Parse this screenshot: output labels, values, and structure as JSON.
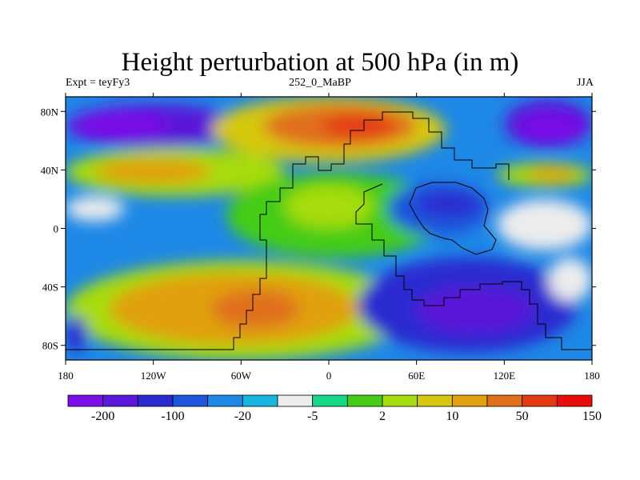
{
  "chart_data": {
    "type": "heatmap",
    "title": "Height perturbation at 500 hPa (in m)",
    "subtitle_left": "Expt = teyFy3",
    "subtitle_center": "252_0_MaBP",
    "subtitle_right": "JJA",
    "x_ticks": [
      "180",
      "120W",
      "60W",
      "0",
      "60E",
      "120E",
      "180"
    ],
    "y_ticks": [
      "80N",
      "40N",
      "0",
      "40S",
      "80S"
    ],
    "xlim": [
      -180,
      180
    ],
    "ylim": [
      -90,
      90
    ],
    "colorbar": {
      "colors": [
        "#7a10e8",
        "#5a18d8",
        "#2a2ad0",
        "#1e55dc",
        "#1e88e6",
        "#16b6e0",
        "#ececec",
        "#14d888",
        "#44cc16",
        "#a6dc10",
        "#d6c810",
        "#e0a010",
        "#e0701a",
        "#e43a14",
        "#e80c0c"
      ],
      "labels": [
        "-200",
        "-100",
        "-20",
        "-5",
        "2",
        "10",
        "50",
        "150"
      ]
    },
    "field": {
      "base": "#1e88e6",
      "regions": [
        {
          "x": [
            -180,
            -60
          ],
          "y": [
            85,
            55
          ],
          "level": 1
        },
        {
          "x": [
            -175,
            -110
          ],
          "y": [
            80,
            62
          ],
          "level": 0
        },
        {
          "x": [
            120,
            180
          ],
          "y": [
            88,
            55
          ],
          "level": 1
        },
        {
          "x": [
            130,
            175
          ],
          "y": [
            78,
            60
          ],
          "level": 0
        },
        {
          "x": [
            -80,
            80
          ],
          "y": [
            90,
            45
          ],
          "level": 10
        },
        {
          "x": [
            -45,
            60
          ],
          "y": [
            85,
            55
          ],
          "level": 12
        },
        {
          "x": [
            -5,
            45
          ],
          "y": [
            78,
            62
          ],
          "level": 13
        },
        {
          "x": [
            -180,
            -30
          ],
          "y": [
            55,
            22
          ],
          "level": 9
        },
        {
          "x": [
            -160,
            -80
          ],
          "y": [
            48,
            30
          ],
          "level": 11
        },
        {
          "x": [
            115,
            180
          ],
          "y": [
            45,
            28
          ],
          "level": 9
        },
        {
          "x": [
            135,
            170
          ],
          "y": [
            42,
            32
          ],
          "level": 11
        },
        {
          "x": [
            -70,
            80
          ],
          "y": [
            38,
            -20
          ],
          "level": 8
        },
        {
          "x": [
            -30,
            30
          ],
          "y": [
            30,
            0
          ],
          "level": 9
        },
        {
          "x": [
            40,
            110
          ],
          "y": [
            32,
            -5
          ],
          "level": 3
        },
        {
          "x": [
            60,
            105
          ],
          "y": [
            25,
            8
          ],
          "level": 2
        },
        {
          "x": [
            115,
            180
          ],
          "y": [
            20,
            -15
          ],
          "level": 6
        },
        {
          "x": [
            -180,
            -140
          ],
          "y": [
            22,
            5
          ],
          "level": 6
        },
        {
          "x": [
            -180,
            60
          ],
          "y": [
            -22,
            -90
          ],
          "level": 9
        },
        {
          "x": [
            -150,
            20
          ],
          "y": [
            -30,
            -80
          ],
          "level": 11
        },
        {
          "x": [
            -80,
            -20
          ],
          "y": [
            -42,
            -68
          ],
          "level": 12
        },
        {
          "x": [
            20,
            170
          ],
          "y": [
            -20,
            -85
          ],
          "level": 2
        },
        {
          "x": [
            60,
            140
          ],
          "y": [
            -40,
            -72
          ],
          "level": 1
        },
        {
          "x": [
            150,
            180
          ],
          "y": [
            -20,
            -50
          ],
          "level": 6
        },
        {
          "x": [
            -180,
            -165
          ],
          "y": [
            -60,
            -85
          ],
          "level": 2
        }
      ]
    }
  }
}
